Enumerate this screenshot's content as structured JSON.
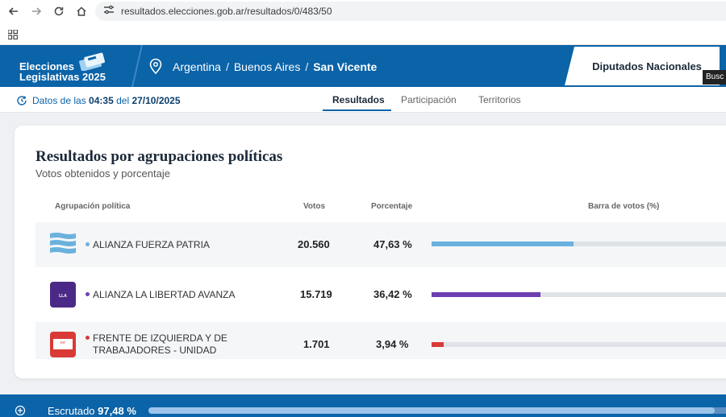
{
  "browser": {
    "url": "resultados.elecciones.gob.ar/resultados/0/483/50"
  },
  "header": {
    "brand_line1": "Elecciones",
    "brand_line2": "Legislativas 2025",
    "breadcrumb": [
      "Argentina",
      "Buenos Aires",
      "San Vicente"
    ],
    "category": "Diputados Nacionales",
    "tooltip": "Busc"
  },
  "subnav": {
    "update_prefix": "Datos de las",
    "update_time": "04:35",
    "update_mid": "del",
    "update_date": "27/10/2025",
    "tabs": [
      "Resultados",
      "Participación",
      "Territorios"
    ]
  },
  "results": {
    "title": "Resultados por agrupaciones políticas",
    "subtitle": "Votos obtenidos y porcentaje",
    "headers": {
      "party": "Agrupación política",
      "votes": "Votos",
      "percent": "Porcentaje",
      "bar": "Barra de votos (%)"
    },
    "rows": [
      {
        "name": "ALIANZA FUERZA PATRIA",
        "votes": "20.560",
        "percent": "47,63 %",
        "share": 47.63,
        "color": "#6ab2dd"
      },
      {
        "name": "ALIANZA LA LIBERTAD AVANZA",
        "votes": "15.719",
        "percent": "36,42 %",
        "share": 36.42,
        "color": "#6d3fb0"
      },
      {
        "name": "FRENTE DE IZQUIERDA Y DE TRABAJADORES - UNIDAD",
        "votes": "1.701",
        "percent": "3,94 %",
        "share": 3.94,
        "color": "#d93a36"
      }
    ]
  },
  "footer": {
    "label": "Escrutado",
    "value": "97,48 %",
    "progress": 97.48
  },
  "colors": {
    "primary": "#0b63a8",
    "background": "#eef0f3"
  },
  "icons": [
    "back-arrow-icon",
    "forward-arrow-icon",
    "reload-icon",
    "home-icon",
    "site-info-icon",
    "apps-grid-icon",
    "location-pin-icon",
    "refresh-clock-icon",
    "plus-circle-icon"
  ]
}
